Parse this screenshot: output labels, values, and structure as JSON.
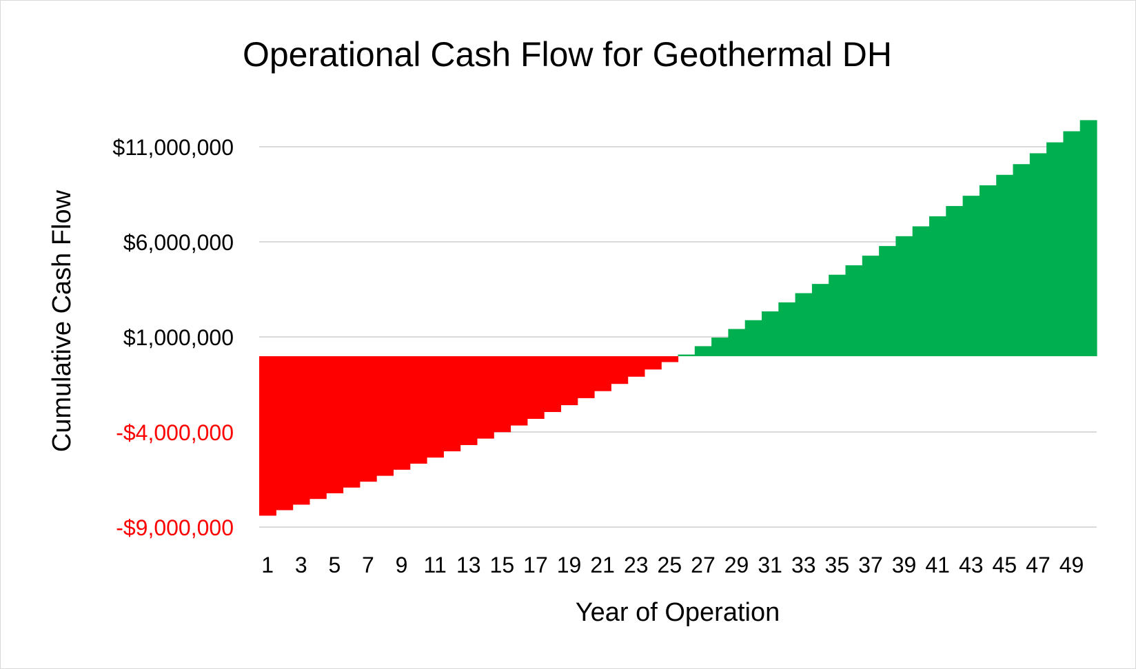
{
  "chart_data": {
    "type": "area",
    "title": "Operational Cash Flow for Geothermal DH",
    "xlabel": "Year of Operation",
    "ylabel": "Cumulative Cash Flow",
    "y_ticks": [
      {
        "value": 11000000,
        "label": "$11,000,000"
      },
      {
        "value": 6000000,
        "label": "$6,000,000"
      },
      {
        "value": 1000000,
        "label": "$1,000,000"
      },
      {
        "value": -4000000,
        "label": "-$4,000,000"
      },
      {
        "value": -9000000,
        "label": "-$9,000,000"
      }
    ],
    "x_tick_labels": [
      "1",
      "3",
      "5",
      "7",
      "9",
      "11",
      "13",
      "15",
      "17",
      "19",
      "21",
      "23",
      "25",
      "27",
      "29",
      "31",
      "33",
      "35",
      "37",
      "39",
      "41",
      "43",
      "45",
      "47",
      "49"
    ],
    "ylim": [
      -9000000,
      11000000
    ],
    "xlim": [
      1,
      50
    ],
    "grid": true,
    "legend": "none",
    "x": [
      1,
      2,
      3,
      4,
      5,
      6,
      7,
      8,
      9,
      10,
      11,
      12,
      13,
      14,
      15,
      16,
      17,
      18,
      19,
      20,
      21,
      22,
      23,
      24,
      25,
      26,
      27,
      28,
      29,
      30,
      31,
      32,
      33,
      34,
      35,
      36,
      37,
      38,
      39,
      40,
      41,
      42,
      43,
      44,
      45,
      46,
      47,
      48,
      49,
      50
    ],
    "series": [
      {
        "values": [
          -8400000,
          -8110000,
          -7820000,
          -7520000,
          -7220000,
          -6920000,
          -6610000,
          -6300000,
          -5980000,
          -5660000,
          -5340000,
          -5010000,
          -4680000,
          -4340000,
          -4000000,
          -3650000,
          -3300000,
          -2940000,
          -2580000,
          -2210000,
          -1840000,
          -1460000,
          -1080000,
          -700000,
          -310000,
          80000,
          480000,
          890000,
          1300000,
          1720000,
          2140000,
          2570000,
          3010000,
          3450000,
          3890000,
          4340000,
          4800000,
          5260000,
          5730000,
          6200000,
          6680000,
          7170000,
          7660000,
          8160000,
          8660000,
          9170000,
          9690000,
          10210000,
          10740000,
          11270000
        ],
        "negative_color": "#ff0000",
        "positive_color": "#00b050"
      }
    ],
    "colors": {
      "gridline": "#d9d9d9",
      "negative_tick_label": "#ff0000",
      "positive_tick_label": "#000000"
    }
  }
}
